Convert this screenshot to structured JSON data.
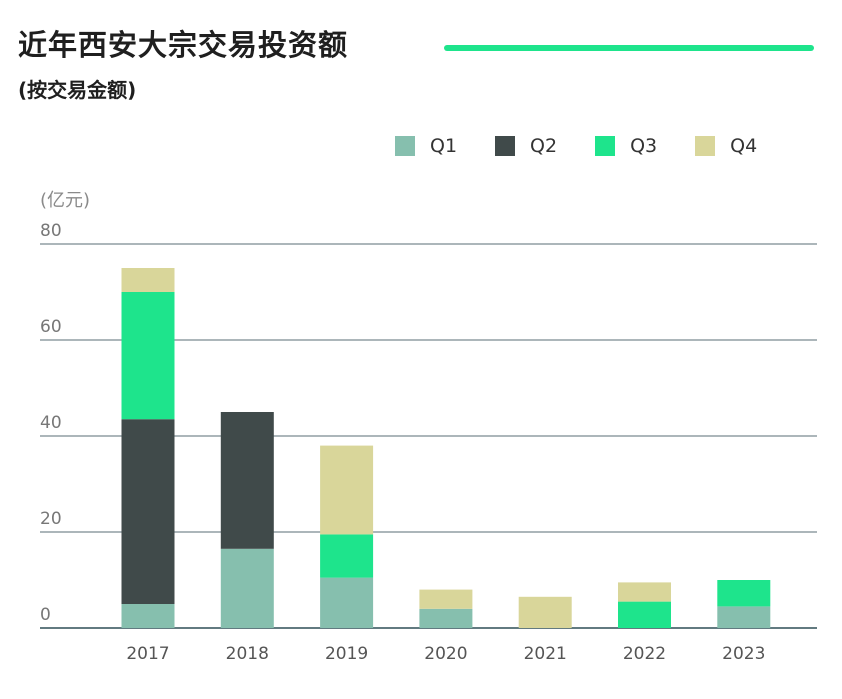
{
  "header": {
    "title": "近年西安大宗交易投资额",
    "subtitle": "(按交易金额)",
    "accent_color": "#1ee48c"
  },
  "chart_data": {
    "type": "bar",
    "stacked": true,
    "title": "近年西安大宗交易投资额",
    "subtitle": "(按交易金额)",
    "ylabel": "(亿元)",
    "xlabel": "",
    "ylim": [
      0,
      80
    ],
    "yticks": [
      0,
      20,
      40,
      60,
      80
    ],
    "grid": true,
    "legend_position": "top-right",
    "categories": [
      "2017",
      "2018",
      "2019",
      "2020",
      "2021",
      "2022",
      "2023"
    ],
    "series": [
      {
        "name": "Q1",
        "color": "#86bfae",
        "values": [
          5,
          16.5,
          10.5,
          4,
          0,
          0,
          4.5
        ]
      },
      {
        "name": "Q2",
        "color": "#404a4a",
        "values": [
          38.5,
          28.5,
          0,
          0,
          0,
          0,
          0
        ]
      },
      {
        "name": "Q3",
        "color": "#1ee48c",
        "values": [
          26.5,
          0,
          9,
          0,
          0,
          5.5,
          5.5
        ]
      },
      {
        "name": "Q4",
        "color": "#d9d69a",
        "values": [
          5,
          0,
          18.5,
          4,
          6.5,
          4,
          0
        ]
      }
    ]
  }
}
